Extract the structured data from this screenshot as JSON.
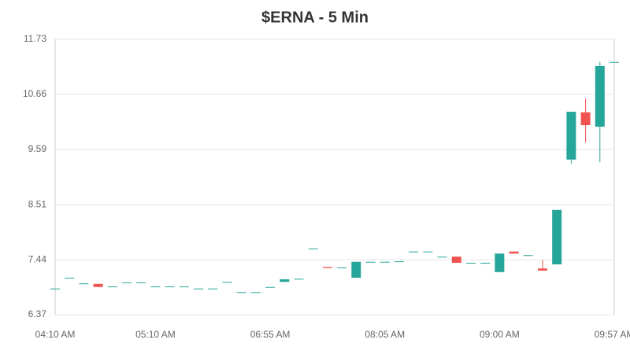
{
  "chart_data": {
    "type": "candlestick",
    "title": "$ERNA - 5 Min",
    "categories": [
      "04:10 AM",
      null,
      null,
      null,
      null,
      null,
      null,
      "05:10 AM",
      null,
      null,
      null,
      null,
      null,
      null,
      null,
      "06:55 AM",
      null,
      null,
      null,
      null,
      null,
      null,
      null,
      "08:05 AM",
      null,
      null,
      null,
      null,
      null,
      null,
      null,
      "09:00 AM",
      null,
      null,
      null,
      null,
      null,
      null,
      null,
      "09:57 AM"
    ],
    "open": [
      6.88,
      7.09,
      6.98,
      6.97,
      6.92,
      7.0,
      7.0,
      6.92,
      6.92,
      6.92,
      6.88,
      6.88,
      7.01,
      6.81,
      6.81,
      6.91,
      7.01,
      7.07,
      7.66,
      7.3,
      7.29,
      7.09,
      7.4,
      7.4,
      7.41,
      7.6,
      7.6,
      7.5,
      7.5,
      7.38,
      7.38,
      7.2,
      7.6,
      7.53,
      7.27,
      7.35,
      9.39,
      10.31,
      10.03,
      11.29
    ],
    "high": [
      6.88,
      7.09,
      6.98,
      6.97,
      6.92,
      7.0,
      7.0,
      6.92,
      6.92,
      6.92,
      6.88,
      6.88,
      7.01,
      6.81,
      6.81,
      6.91,
      7.06,
      7.07,
      7.66,
      7.3,
      7.29,
      7.4,
      7.4,
      7.4,
      7.41,
      7.6,
      7.6,
      7.5,
      7.5,
      7.38,
      7.38,
      7.56,
      7.6,
      7.53,
      7.44,
      8.41,
      10.32,
      10.58,
      11.29,
      11.29
    ],
    "low": [
      6.88,
      7.09,
      6.98,
      6.91,
      6.92,
      7.0,
      7.0,
      6.92,
      6.92,
      6.92,
      6.88,
      6.88,
      7.01,
      6.81,
      6.81,
      6.91,
      7.01,
      7.07,
      7.66,
      7.28,
      7.29,
      7.09,
      7.4,
      7.4,
      7.41,
      7.6,
      7.6,
      7.5,
      7.38,
      7.38,
      7.38,
      7.2,
      7.56,
      7.53,
      7.23,
      7.35,
      9.31,
      9.72,
      9.34,
      11.29
    ],
    "close": [
      6.88,
      7.09,
      6.98,
      6.91,
      6.92,
      7.0,
      7.0,
      6.92,
      6.92,
      6.92,
      6.88,
      6.88,
      7.01,
      6.81,
      6.81,
      6.91,
      7.06,
      7.07,
      7.66,
      7.28,
      7.29,
      7.4,
      7.4,
      7.4,
      7.41,
      7.6,
      7.6,
      7.5,
      7.38,
      7.38,
      7.38,
      7.56,
      7.56,
      7.53,
      7.23,
      8.41,
      10.32,
      10.06,
      11.21,
      11.29
    ],
    "up_color": "#26a69a",
    "down_color": "#ef5350",
    "ylim": [
      6.37,
      11.73
    ],
    "yticks": [
      6.37,
      7.44,
      8.51,
      9.59,
      10.66,
      11.73
    ],
    "grid": true
  }
}
